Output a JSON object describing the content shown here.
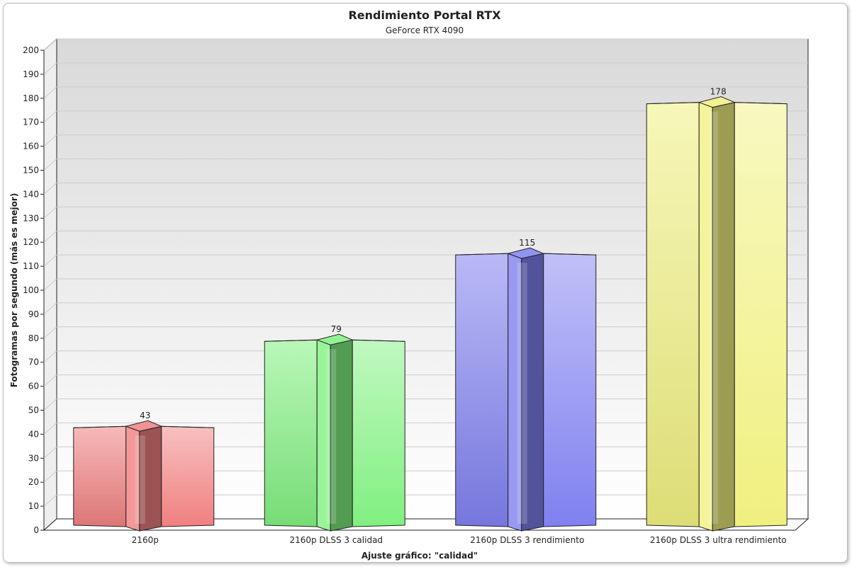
{
  "chart_data": {
    "type": "bar",
    "title": "Rendimiento Portal RTX",
    "subtitle": "GeForce RTX 4090",
    "xlabel": "Ajuste gráfico: \"calidad\"",
    "ylabel": "Fotogramas por segundo (más es mejor)",
    "ylim": [
      0,
      200
    ],
    "ytick_step": 10,
    "grid": true,
    "categories": [
      "2160p",
      "2160p DLSS 3 calidad",
      "2160p DLSS 3 rendimiento",
      "2160p DLSS 3 ultra rendimiento"
    ],
    "values": [
      43,
      79,
      115,
      178
    ],
    "data_labels": [
      "43",
      "79",
      "115",
      "178"
    ],
    "colors": [
      "#f08080",
      "#80f080",
      "#8080f0",
      "#f0f080"
    ]
  }
}
